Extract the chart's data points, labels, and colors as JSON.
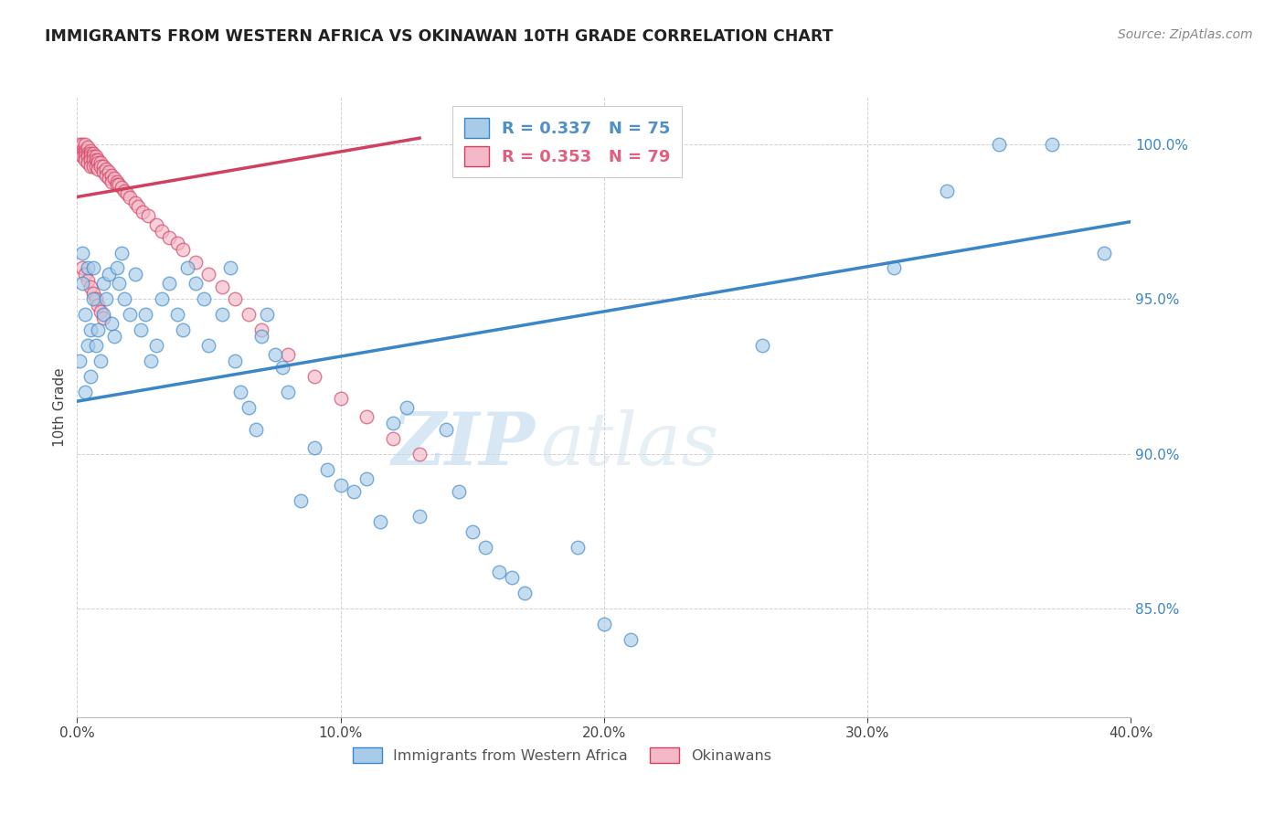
{
  "title": "IMMIGRANTS FROM WESTERN AFRICA VS OKINAWAN 10TH GRADE CORRELATION CHART",
  "source": "Source: ZipAtlas.com",
  "xlabel_ticks": [
    "0.0%",
    "10.0%",
    "20.0%",
    "30.0%",
    "40.0%"
  ],
  "xlabel_tick_vals": [
    0.0,
    0.1,
    0.2,
    0.3,
    0.4
  ],
  "ylabel_ticks": [
    "85.0%",
    "90.0%",
    "95.0%",
    "100.0%"
  ],
  "ylabel_tick_vals": [
    0.85,
    0.9,
    0.95,
    1.0
  ],
  "xlim": [
    0.0,
    0.4
  ],
  "ylim": [
    0.815,
    1.015
  ],
  "ylabel": "10th Grade",
  "legend_label_blue": "Immigrants from Western Africa",
  "legend_label_pink": "Okinawans",
  "blue_R": "R = 0.337",
  "blue_N": "N = 75",
  "pink_R": "R = 0.353",
  "pink_N": "N = 79",
  "blue_color": "#a8cce8",
  "pink_color": "#f4b8c8",
  "blue_line_color": "#3a86c8",
  "pink_line_color": "#d04060",
  "blue_legend_color": "#5090c8",
  "pink_legend_color": "#e06080",
  "watermark_zip": "ZIP",
  "watermark_atlas": "atlas",
  "blue_scatter_x": [
    0.001,
    0.002,
    0.002,
    0.003,
    0.003,
    0.004,
    0.004,
    0.005,
    0.005,
    0.006,
    0.006,
    0.007,
    0.008,
    0.009,
    0.01,
    0.01,
    0.011,
    0.012,
    0.013,
    0.014,
    0.015,
    0.016,
    0.017,
    0.018,
    0.02,
    0.022,
    0.024,
    0.026,
    0.028,
    0.03,
    0.032,
    0.035,
    0.038,
    0.04,
    0.042,
    0.045,
    0.048,
    0.05,
    0.055,
    0.058,
    0.06,
    0.062,
    0.065,
    0.068,
    0.07,
    0.072,
    0.075,
    0.078,
    0.08,
    0.085,
    0.09,
    0.095,
    0.1,
    0.105,
    0.11,
    0.115,
    0.12,
    0.125,
    0.13,
    0.14,
    0.145,
    0.15,
    0.155,
    0.16,
    0.165,
    0.17,
    0.19,
    0.2,
    0.21,
    0.26,
    0.31,
    0.33,
    0.35,
    0.37,
    0.39
  ],
  "blue_scatter_y": [
    0.93,
    0.955,
    0.965,
    0.92,
    0.945,
    0.935,
    0.96,
    0.925,
    0.94,
    0.95,
    0.96,
    0.935,
    0.94,
    0.93,
    0.945,
    0.955,
    0.95,
    0.958,
    0.942,
    0.938,
    0.96,
    0.955,
    0.965,
    0.95,
    0.945,
    0.958,
    0.94,
    0.945,
    0.93,
    0.935,
    0.95,
    0.955,
    0.945,
    0.94,
    0.96,
    0.955,
    0.95,
    0.935,
    0.945,
    0.96,
    0.93,
    0.92,
    0.915,
    0.908,
    0.938,
    0.945,
    0.932,
    0.928,
    0.92,
    0.885,
    0.902,
    0.895,
    0.89,
    0.888,
    0.892,
    0.878,
    0.91,
    0.915,
    0.88,
    0.908,
    0.888,
    0.875,
    0.87,
    0.862,
    0.86,
    0.855,
    0.87,
    0.845,
    0.84,
    0.935,
    0.96,
    0.985,
    1.0,
    1.0,
    0.965
  ],
  "pink_scatter_x": [
    0.001,
    0.001,
    0.001,
    0.002,
    0.002,
    0.002,
    0.002,
    0.003,
    0.003,
    0.003,
    0.003,
    0.003,
    0.004,
    0.004,
    0.004,
    0.004,
    0.005,
    0.005,
    0.005,
    0.005,
    0.005,
    0.006,
    0.006,
    0.006,
    0.006,
    0.007,
    0.007,
    0.007,
    0.008,
    0.008,
    0.008,
    0.009,
    0.009,
    0.01,
    0.01,
    0.011,
    0.011,
    0.012,
    0.012,
    0.013,
    0.013,
    0.014,
    0.015,
    0.015,
    0.016,
    0.017,
    0.018,
    0.019,
    0.02,
    0.022,
    0.023,
    0.025,
    0.027,
    0.03,
    0.032,
    0.035,
    0.038,
    0.04,
    0.045,
    0.05,
    0.055,
    0.06,
    0.065,
    0.07,
    0.08,
    0.09,
    0.1,
    0.11,
    0.12,
    0.13,
    0.002,
    0.003,
    0.004,
    0.005,
    0.006,
    0.007,
    0.008,
    0.009,
    0.01
  ],
  "pink_scatter_y": [
    1.0,
    0.998,
    0.997,
    1.0,
    0.998,
    0.997,
    0.996,
    1.0,
    0.998,
    0.997,
    0.996,
    0.995,
    0.999,
    0.997,
    0.996,
    0.994,
    0.998,
    0.997,
    0.996,
    0.995,
    0.993,
    0.997,
    0.996,
    0.995,
    0.993,
    0.996,
    0.995,
    0.993,
    0.995,
    0.994,
    0.992,
    0.994,
    0.993,
    0.993,
    0.991,
    0.992,
    0.99,
    0.991,
    0.989,
    0.99,
    0.988,
    0.989,
    0.988,
    0.987,
    0.987,
    0.986,
    0.985,
    0.984,
    0.983,
    0.981,
    0.98,
    0.978,
    0.977,
    0.974,
    0.972,
    0.97,
    0.968,
    0.966,
    0.962,
    0.958,
    0.954,
    0.95,
    0.945,
    0.94,
    0.932,
    0.925,
    0.918,
    0.912,
    0.905,
    0.9,
    0.96,
    0.958,
    0.956,
    0.954,
    0.952,
    0.95,
    0.948,
    0.946,
    0.944
  ],
  "blue_line_x": [
    0.0,
    0.4
  ],
  "blue_line_y": [
    0.917,
    0.975
  ],
  "pink_line_x": [
    0.0,
    0.13
  ],
  "pink_line_y": [
    0.983,
    1.002
  ]
}
